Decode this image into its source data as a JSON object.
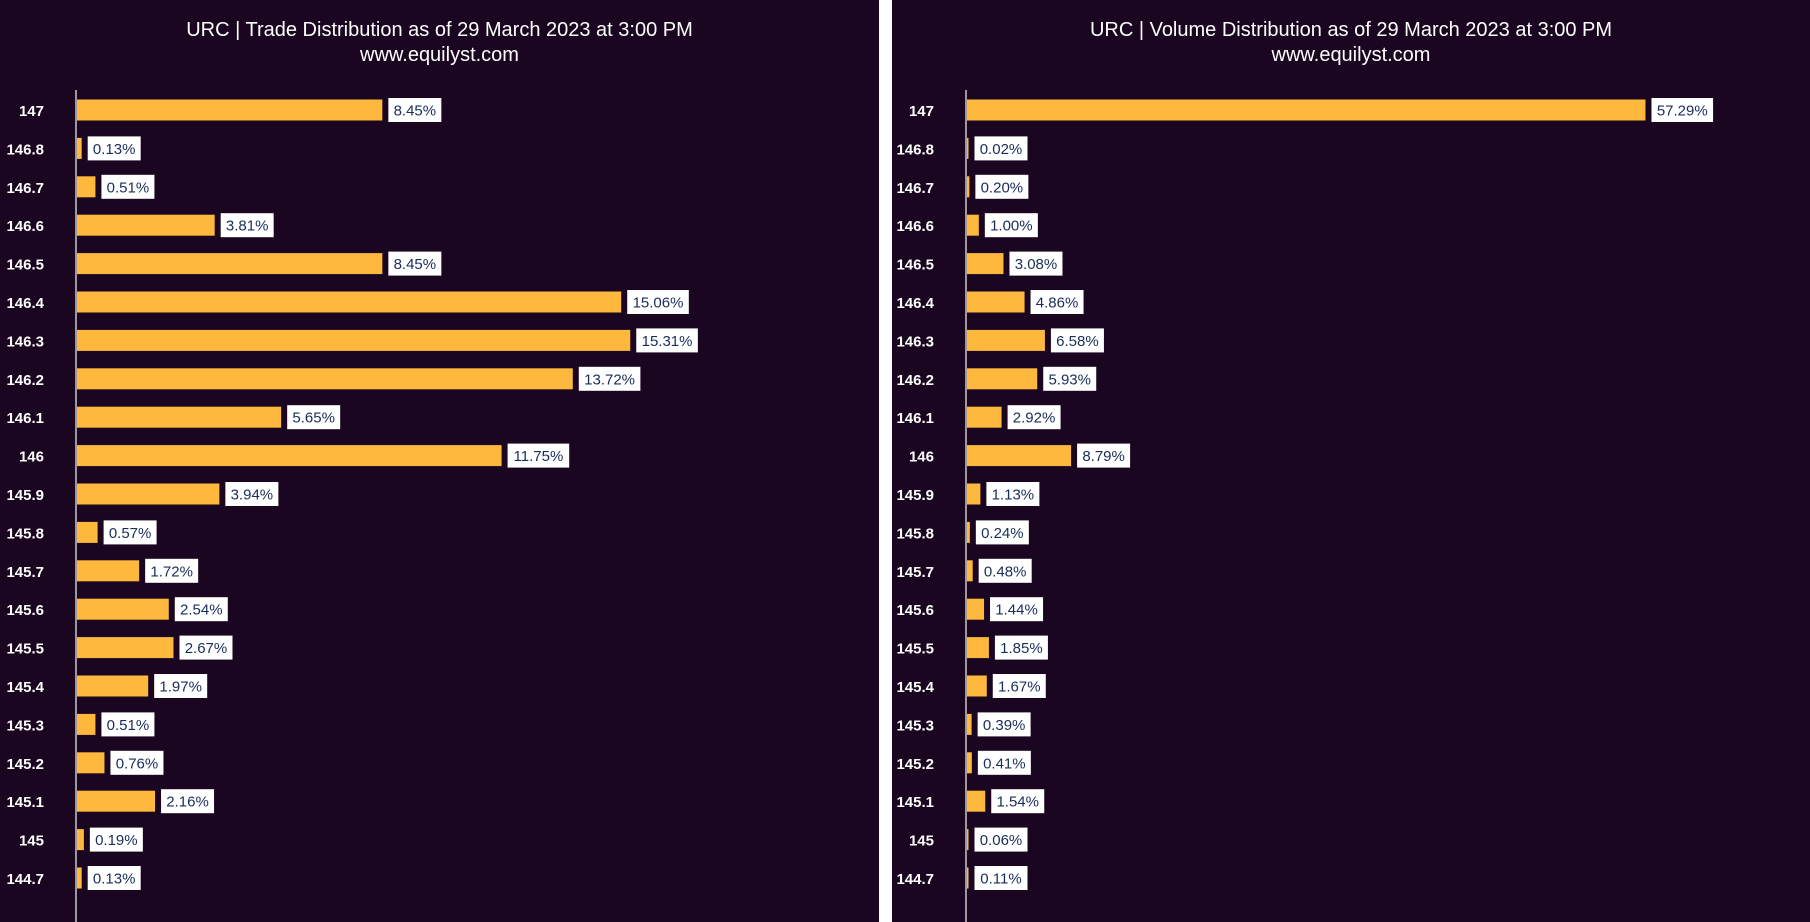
{
  "colors": {
    "background": "#1a0620",
    "bar": "#fdb83d",
    "label_box": "#ffffff",
    "label_text": "#1a2d5a",
    "axis": "#c8c8c8",
    "text": "#ffffff"
  },
  "chart_data": [
    {
      "type": "bar",
      "orientation": "horizontal",
      "title": "URC | Trade Distribution as of 29 March 2023 at 3:00 PM",
      "subtitle": "www.equilyst.com",
      "categories": [
        "147",
        "146.8",
        "146.7",
        "146.6",
        "146.5",
        "146.4",
        "146.3",
        "146.2",
        "146.1",
        "146",
        "145.9",
        "145.8",
        "145.7",
        "145.6",
        "145.5",
        "145.4",
        "145.3",
        "145.2",
        "145.1",
        "145",
        "144.7"
      ],
      "values": [
        8.45,
        0.13,
        0.51,
        3.81,
        8.45,
        15.06,
        15.31,
        13.72,
        5.65,
        11.75,
        3.94,
        0.57,
        1.72,
        2.54,
        2.67,
        1.97,
        0.51,
        0.76,
        2.16,
        0.19,
        0.13
      ],
      "value_labels": [
        "8.45%",
        "0.13%",
        "0.51%",
        "3.81%",
        "8.45%",
        "15.06%",
        "15.31%",
        "13.72%",
        "5.65%",
        "11.75%",
        "3.94%",
        "0.57%",
        "1.72%",
        "2.54%",
        "2.67%",
        "1.97%",
        "0.51%",
        "0.76%",
        "2.16%",
        "0.19%",
        "0.13%"
      ],
      "xlim": [
        0,
        22
      ],
      "grid": false,
      "legend": "none"
    },
    {
      "type": "bar",
      "orientation": "horizontal",
      "title": "URC | Volume Distribution as of 29 March 2023 at 3:00 PM",
      "subtitle": "www.equilyst.com",
      "categories": [
        "147",
        "146.8",
        "146.7",
        "146.6",
        "146.5",
        "146.4",
        "146.3",
        "146.2",
        "146.1",
        "146",
        "145.9",
        "145.8",
        "145.7",
        "145.6",
        "145.5",
        "145.4",
        "145.3",
        "145.2",
        "145.1",
        "145",
        "144.7"
      ],
      "values": [
        57.29,
        0.02,
        0.2,
        1.0,
        3.08,
        4.86,
        6.58,
        5.93,
        2.92,
        8.79,
        1.13,
        0.24,
        0.48,
        1.44,
        1.85,
        1.67,
        0.39,
        0.41,
        1.54,
        0.06,
        0.11
      ],
      "value_labels": [
        "57.29%",
        "0.02%",
        "0.20%",
        "1.00%",
        "3.08%",
        "4.86%",
        "6.58%",
        "5.93%",
        "2.92%",
        "8.79%",
        "1.13%",
        "0.24%",
        "0.48%",
        "1.44%",
        "1.85%",
        "1.67%",
        "0.39%",
        "0.41%",
        "1.54%",
        "0.06%",
        "0.11%"
      ],
      "xlim": [
        0,
        70
      ],
      "grid": false,
      "legend": "none"
    }
  ]
}
